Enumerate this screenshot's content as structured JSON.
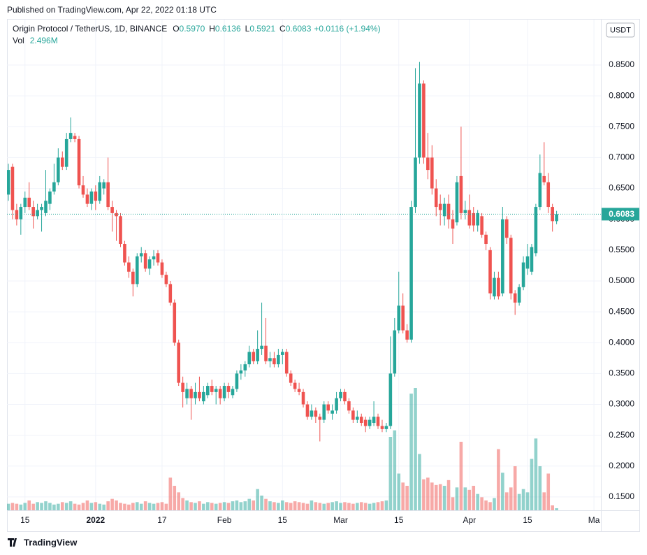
{
  "chart_data": {
    "type": "candlestick",
    "publisher": "Published on TradingView.com, Apr 22, 2022 01:18 UTC",
    "symbol": "Origin Protocol / TetherUS, 1D, BINANCE",
    "ohlc_labels": [
      "O",
      "H",
      "L",
      "C"
    ],
    "ohlc_value_labels": [
      "0.5970",
      "0.6136",
      "0.5921",
      "0.6083"
    ],
    "change": "+0.0116 (+1.94%)",
    "vol_name": "Vol",
    "vol_label": "2.496M",
    "currency": "USDT",
    "footer": "TradingView",
    "up_color": "#26a69a",
    "down_color": "#ef5350",
    "grid": true,
    "x": [
      "2021-12-11",
      "2021-12-12",
      "2021-12-13",
      "2021-12-14",
      "2021-12-15",
      "2021-12-16",
      "2021-12-17",
      "2021-12-18",
      "2021-12-19",
      "2021-12-20",
      "2021-12-21",
      "2021-12-22",
      "2021-12-23",
      "2021-12-24",
      "2021-12-25",
      "2021-12-26",
      "2021-12-27",
      "2021-12-28",
      "2021-12-29",
      "2021-12-30",
      "2021-12-31",
      "2022-01-01",
      "2022-01-02",
      "2022-01-03",
      "2022-01-04",
      "2022-01-05",
      "2022-01-06",
      "2022-01-07",
      "2022-01-08",
      "2022-01-09",
      "2022-01-10",
      "2022-01-11",
      "2022-01-12",
      "2022-01-13",
      "2022-01-14",
      "2022-01-15",
      "2022-01-16",
      "2022-01-17",
      "2022-01-18",
      "2022-01-19",
      "2022-01-20",
      "2022-01-21",
      "2022-01-22",
      "2022-01-23",
      "2022-01-24",
      "2022-01-25",
      "2022-01-26",
      "2022-01-27",
      "2022-01-28",
      "2022-01-29",
      "2022-01-30",
      "2022-01-31",
      "2022-02-01",
      "2022-02-02",
      "2022-02-03",
      "2022-02-04",
      "2022-02-05",
      "2022-02-06",
      "2022-02-07",
      "2022-02-08",
      "2022-02-09",
      "2022-02-10",
      "2022-02-11",
      "2022-02-12",
      "2022-02-13",
      "2022-02-14",
      "2022-02-15",
      "2022-02-16",
      "2022-02-17",
      "2022-02-18",
      "2022-02-19",
      "2022-02-20",
      "2022-02-21",
      "2022-02-22",
      "2022-02-23",
      "2022-02-24",
      "2022-02-25",
      "2022-02-26",
      "2022-02-27",
      "2022-02-28",
      "2022-03-01",
      "2022-03-02",
      "2022-03-03",
      "2022-03-04",
      "2022-03-05",
      "2022-03-06",
      "2022-03-07",
      "2022-03-08",
      "2022-03-09",
      "2022-03-10",
      "2022-03-11",
      "2022-03-12",
      "2022-03-13",
      "2022-03-14",
      "2022-03-15",
      "2022-03-16",
      "2022-03-17",
      "2022-03-18",
      "2022-03-19",
      "2022-03-20",
      "2022-03-21",
      "2022-03-22",
      "2022-03-23",
      "2022-03-24",
      "2022-03-25",
      "2022-03-26",
      "2022-03-27",
      "2022-03-28",
      "2022-03-29",
      "2022-03-30",
      "2022-03-31",
      "2022-04-01",
      "2022-04-02",
      "2022-04-03",
      "2022-04-04",
      "2022-04-05",
      "2022-04-06",
      "2022-04-07",
      "2022-04-08",
      "2022-04-09",
      "2022-04-10",
      "2022-04-11",
      "2022-04-12",
      "2022-04-13",
      "2022-04-14",
      "2022-04-15",
      "2022-04-16",
      "2022-04-17",
      "2022-04-18",
      "2022-04-19",
      "2022-04-20",
      "2022-04-21",
      "2022-04-22"
    ],
    "open": [
      0.64,
      0.685,
      0.615,
      0.6,
      0.62,
      0.635,
      0.62,
      0.605,
      0.615,
      0.61,
      0.625,
      0.645,
      0.66,
      0.7,
      0.685,
      0.73,
      0.735,
      0.73,
      0.655,
      0.64,
      0.625,
      0.645,
      0.63,
      0.65,
      0.66,
      0.62,
      0.61,
      0.605,
      0.56,
      0.53,
      0.515,
      0.495,
      0.54,
      0.545,
      0.52,
      0.535,
      0.545,
      0.53,
      0.51,
      0.495,
      0.465,
      0.4,
      0.335,
      0.31,
      0.325,
      0.31,
      0.32,
      0.305,
      0.315,
      0.33,
      0.32,
      0.325,
      0.31,
      0.33,
      0.315,
      0.325,
      0.35,
      0.355,
      0.365,
      0.385,
      0.37,
      0.39,
      0.395,
      0.37,
      0.375,
      0.365,
      0.38,
      0.385,
      0.35,
      0.335,
      0.325,
      0.32,
      0.3,
      0.28,
      0.29,
      0.28,
      0.275,
      0.3,
      0.285,
      0.29,
      0.31,
      0.32,
      0.305,
      0.29,
      0.275,
      0.28,
      0.275,
      0.265,
      0.27,
      0.28,
      0.265,
      0.26,
      0.265,
      0.35,
      0.42,
      0.46,
      0.42,
      0.405,
      0.62,
      0.7,
      0.82,
      0.7,
      0.7,
      0.65,
      0.625,
      0.605,
      0.625,
      0.6,
      0.595,
      0.67,
      0.61,
      0.615,
      0.61,
      0.59,
      0.605,
      0.575,
      0.55,
      0.475,
      0.505,
      0.48,
      0.6,
      0.57,
      0.48,
      0.465,
      0.49,
      0.52,
      0.515,
      0.545,
      0.62,
      0.67,
      0.66,
      0.62,
      0.597
    ],
    "high": [
      0.69,
      0.69,
      0.625,
      0.625,
      0.645,
      0.66,
      0.63,
      0.625,
      0.625,
      0.68,
      0.65,
      0.69,
      0.715,
      0.71,
      0.74,
      0.765,
      0.74,
      0.735,
      0.67,
      0.65,
      0.65,
      0.655,
      0.67,
      0.665,
      0.7,
      0.63,
      0.615,
      0.61,
      0.565,
      0.54,
      0.52,
      0.545,
      0.555,
      0.55,
      0.54,
      0.55,
      0.55,
      0.535,
      0.515,
      0.5,
      0.47,
      0.405,
      0.345,
      0.335,
      0.33,
      0.335,
      0.345,
      0.33,
      0.335,
      0.34,
      0.33,
      0.33,
      0.335,
      0.335,
      0.33,
      0.355,
      0.365,
      0.37,
      0.395,
      0.39,
      0.42,
      0.465,
      0.44,
      0.385,
      0.385,
      0.39,
      0.39,
      0.39,
      0.355,
      0.34,
      0.335,
      0.325,
      0.305,
      0.3,
      0.295,
      0.285,
      0.305,
      0.305,
      0.3,
      0.32,
      0.325,
      0.325,
      0.31,
      0.295,
      0.29,
      0.285,
      0.28,
      0.28,
      0.305,
      0.285,
      0.275,
      0.27,
      0.41,
      0.44,
      0.515,
      0.48,
      0.43,
      0.63,
      0.845,
      0.855,
      0.825,
      0.74,
      0.72,
      0.665,
      0.64,
      0.635,
      0.64,
      0.615,
      0.67,
      0.75,
      0.63,
      0.64,
      0.62,
      0.615,
      0.61,
      0.58,
      0.555,
      0.515,
      0.515,
      0.62,
      0.605,
      0.575,
      0.485,
      0.495,
      0.54,
      0.56,
      0.56,
      0.625,
      0.705,
      0.725,
      0.675,
      0.625,
      0.6136
    ],
    "low": [
      0.63,
      0.6,
      0.59,
      0.575,
      0.61,
      0.615,
      0.585,
      0.6,
      0.58,
      0.605,
      0.615,
      0.64,
      0.655,
      0.68,
      0.68,
      0.725,
      0.725,
      0.65,
      0.635,
      0.62,
      0.615,
      0.615,
      0.625,
      0.64,
      0.615,
      0.58,
      0.565,
      0.555,
      0.525,
      0.505,
      0.475,
      0.49,
      0.53,
      0.515,
      0.51,
      0.525,
      0.525,
      0.505,
      0.49,
      0.46,
      0.395,
      0.33,
      0.295,
      0.3,
      0.275,
      0.3,
      0.305,
      0.3,
      0.31,
      0.315,
      0.3,
      0.3,
      0.305,
      0.31,
      0.31,
      0.32,
      0.34,
      0.345,
      0.36,
      0.365,
      0.365,
      0.38,
      0.365,
      0.36,
      0.36,
      0.36,
      0.365,
      0.345,
      0.33,
      0.32,
      0.315,
      0.295,
      0.275,
      0.275,
      0.27,
      0.24,
      0.27,
      0.285,
      0.275,
      0.285,
      0.305,
      0.3,
      0.285,
      0.27,
      0.27,
      0.265,
      0.255,
      0.26,
      0.265,
      0.26,
      0.255,
      0.255,
      0.26,
      0.345,
      0.415,
      0.415,
      0.4,
      0.4,
      0.61,
      0.69,
      0.69,
      0.665,
      0.64,
      0.605,
      0.59,
      0.59,
      0.585,
      0.56,
      0.59,
      0.6,
      0.6,
      0.585,
      0.58,
      0.58,
      0.57,
      0.55,
      0.47,
      0.47,
      0.47,
      0.475,
      0.56,
      0.47,
      0.445,
      0.46,
      0.485,
      0.51,
      0.51,
      0.54,
      0.615,
      0.655,
      0.61,
      0.58,
      0.5921
    ],
    "close": [
      0.68,
      0.615,
      0.6,
      0.62,
      0.635,
      0.62,
      0.605,
      0.615,
      0.62,
      0.63,
      0.645,
      0.66,
      0.7,
      0.685,
      0.73,
      0.74,
      0.73,
      0.655,
      0.64,
      0.625,
      0.645,
      0.63,
      0.66,
      0.66,
      0.62,
      0.61,
      0.605,
      0.56,
      0.53,
      0.515,
      0.495,
      0.54,
      0.545,
      0.52,
      0.535,
      0.54,
      0.53,
      0.51,
      0.495,
      0.465,
      0.4,
      0.335,
      0.32,
      0.325,
      0.31,
      0.32,
      0.31,
      0.32,
      0.33,
      0.32,
      0.325,
      0.31,
      0.33,
      0.32,
      0.325,
      0.35,
      0.355,
      0.365,
      0.385,
      0.37,
      0.39,
      0.395,
      0.37,
      0.375,
      0.365,
      0.38,
      0.385,
      0.35,
      0.335,
      0.325,
      0.32,
      0.3,
      0.28,
      0.29,
      0.28,
      0.275,
      0.3,
      0.29,
      0.29,
      0.31,
      0.32,
      0.305,
      0.29,
      0.275,
      0.28,
      0.27,
      0.265,
      0.275,
      0.28,
      0.265,
      0.26,
      0.265,
      0.35,
      0.42,
      0.46,
      0.42,
      0.405,
      0.62,
      0.7,
      0.82,
      0.7,
      0.68,
      0.65,
      0.62,
      0.615,
      0.625,
      0.6,
      0.585,
      0.66,
      0.61,
      0.615,
      0.59,
      0.59,
      0.61,
      0.575,
      0.56,
      0.48,
      0.505,
      0.475,
      0.6,
      0.57,
      0.48,
      0.465,
      0.49,
      0.53,
      0.54,
      0.555,
      0.62,
      0.675,
      0.66,
      0.62,
      0.597,
      0.6083
    ],
    "volume": [
      8,
      9,
      8,
      7,
      9,
      12,
      8,
      10,
      9,
      11,
      9,
      7,
      8,
      10,
      9,
      11,
      8,
      7,
      9,
      12,
      9,
      10,
      8,
      7,
      11,
      14,
      12,
      9,
      8,
      7,
      9,
      10,
      8,
      11,
      9,
      8,
      9,
      10,
      8,
      40,
      30,
      22,
      15,
      12,
      10,
      9,
      11,
      8,
      10,
      9,
      8,
      9,
      10,
      9,
      11,
      12,
      10,
      11,
      14,
      12,
      26,
      18,
      14,
      11,
      10,
      9,
      12,
      10,
      9,
      11,
      10,
      9,
      8,
      12,
      10,
      9,
      8,
      9,
      10,
      11,
      9,
      10,
      9,
      8,
      9,
      10,
      9,
      8,
      9,
      10,
      11,
      12,
      90,
      98,
      45,
      34,
      30,
      143,
      150,
      69,
      38,
      40,
      34,
      31,
      32,
      30,
      37,
      16,
      28,
      84,
      28,
      25,
      30,
      20,
      16,
      12,
      10,
      15,
      75,
      46,
      22,
      28,
      54,
      20,
      26,
      22,
      63,
      88,
      54,
      22,
      45,
      6,
      2.496
    ],
    "vol_ylim": [
      0,
      600
    ],
    "ylim": [
      0.1284,
      0.9214
    ],
    "yticks": [
      {
        "value": 0.15,
        "label": "0.1500"
      },
      {
        "value": 0.2,
        "label": "0.2000"
      },
      {
        "value": 0.25,
        "label": "0.2500"
      },
      {
        "value": 0.3,
        "label": "0.3000"
      },
      {
        "value": 0.35,
        "label": "0.3500"
      },
      {
        "value": 0.4,
        "label": "0.4000"
      },
      {
        "value": 0.45,
        "label": "0.4500"
      },
      {
        "value": 0.5,
        "label": "0.5000"
      },
      {
        "value": 0.55,
        "label": "0.5500"
      },
      {
        "value": 0.6,
        "label": "0.6000"
      },
      {
        "value": 0.65,
        "label": "0.6500"
      },
      {
        "value": 0.7,
        "label": "0.7000"
      },
      {
        "value": 0.75,
        "label": "0.7500"
      },
      {
        "value": 0.8,
        "label": "0.8000"
      },
      {
        "value": 0.85,
        "label": "0.8500"
      }
    ],
    "xlim": [
      "2021-12-11",
      "2022-05-03"
    ],
    "xticks": [
      {
        "value": "2021-12-15",
        "label": "15"
      },
      {
        "value": "2022-01-01",
        "label": "2022"
      },
      {
        "value": "2022-01-17",
        "label": "17"
      },
      {
        "value": "2022-02-01",
        "label": "Feb"
      },
      {
        "value": "2022-02-15",
        "label": "15"
      },
      {
        "value": "2022-03-01",
        "label": "Mar"
      },
      {
        "value": "2022-03-15",
        "label": "15"
      },
      {
        "value": "2022-04-01",
        "label": "Apr"
      },
      {
        "value": "2022-04-15",
        "label": "15"
      },
      {
        "value": "2022-05-01",
        "label": "Ma"
      }
    ]
  }
}
